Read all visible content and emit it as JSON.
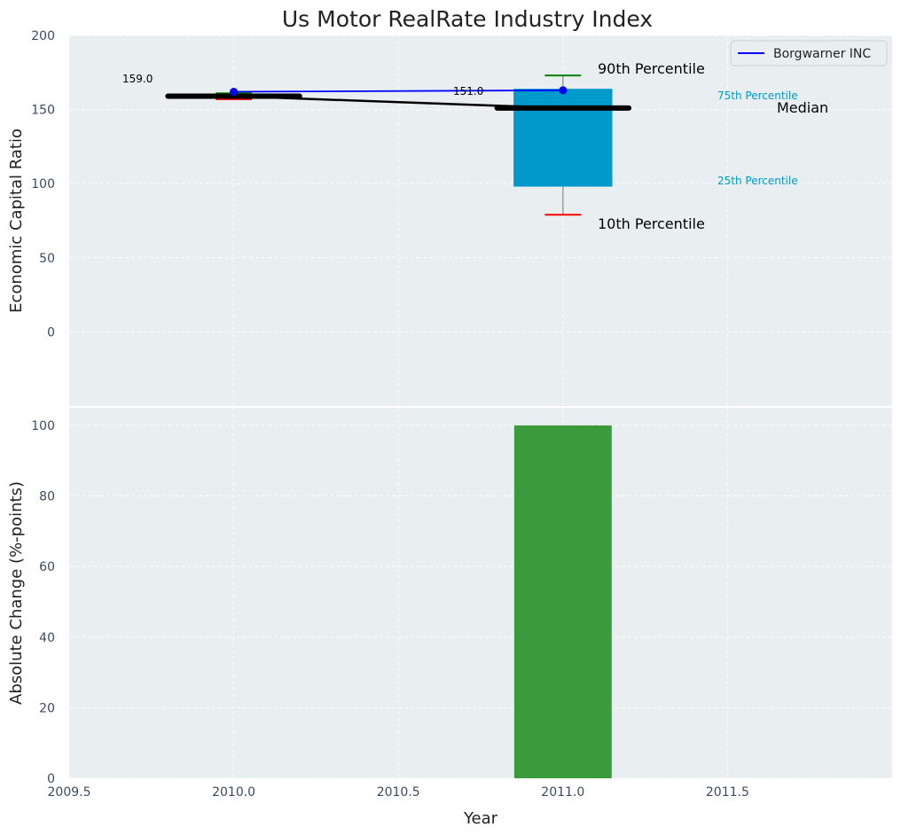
{
  "chart_data": {
    "title": "Us Motor RealRate Industry Index",
    "xlabel": "Year",
    "xlim": [
      2009.5,
      2012.0
    ],
    "xticks": [
      "2009.5",
      "2010.0",
      "2010.5",
      "2011.0",
      "2011.5"
    ],
    "top": {
      "type": "box",
      "ylabel": "Economic Capital Ratio",
      "ylim": [
        -50,
        200
      ],
      "yticks": [
        "0",
        "50",
        "100",
        "150",
        "200"
      ],
      "boxes": [
        {
          "x": 2010.0,
          "p10": 157,
          "p25": 158,
          "median": 159,
          "p75": 160,
          "p90": 161
        },
        {
          "x": 2011.0,
          "p10": 79,
          "p25": 98,
          "median": 151,
          "p75": 164,
          "p90": 173
        }
      ],
      "median_line": {
        "x": [
          2010.0,
          2011.0
        ],
        "y": [
          159,
          151
        ]
      },
      "median_labels": [
        "159.0",
        "151.0"
      ],
      "series": [
        {
          "name": "Borgwarner INC",
          "x": [
            2010.0,
            2011.0
          ],
          "y": [
            162,
            163
          ],
          "color": "#0000ff"
        }
      ],
      "legend_position": "top-right",
      "annotations": {
        "p90": "90th Percentile",
        "p10": "10th Percentile",
        "p75": "75th Percentile",
        "p25": "25th Percentile",
        "median": "Median"
      }
    },
    "bottom": {
      "type": "bar",
      "ylabel": "Absolute Change (%-points)",
      "ylim": [
        0,
        105
      ],
      "yticks": [
        "0",
        "20",
        "40",
        "60",
        "80",
        "100"
      ],
      "bars": [
        {
          "x": 2011.0,
          "value": 100
        }
      ]
    }
  },
  "colors": {
    "panel_bg": "#e9eef0",
    "box": "#0099cc",
    "bar": "#3a9b3d",
    "median": "#000000",
    "p90_whisker": "#008000",
    "p10_whisker": "#ff0000",
    "company": "#0000ff"
  }
}
